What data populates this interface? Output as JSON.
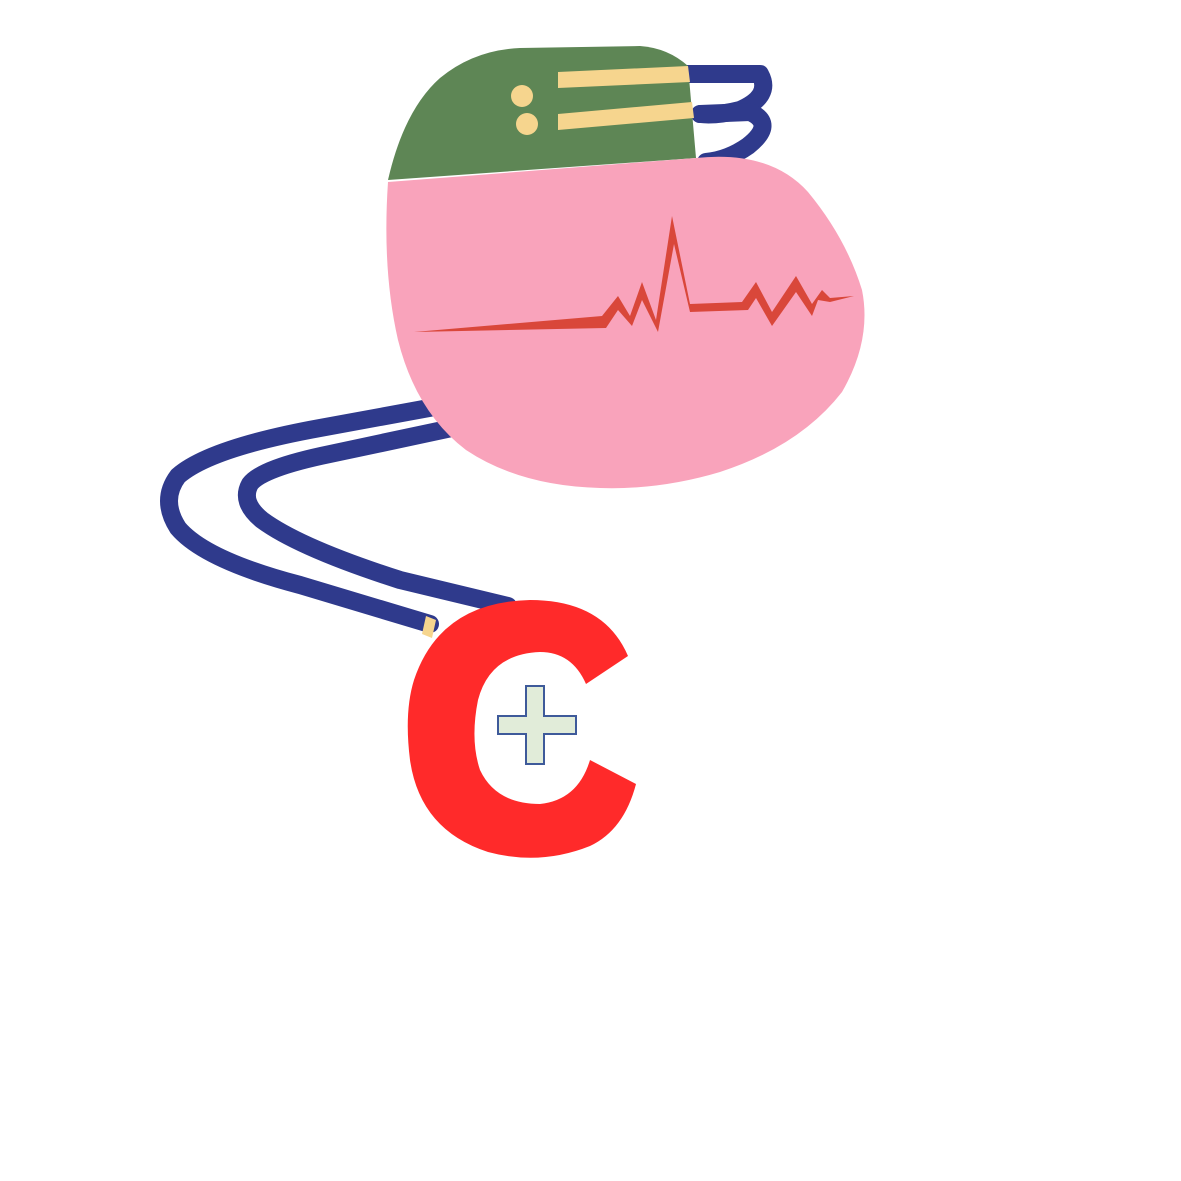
{
  "illustration": {
    "subject": "pacemaker-logo",
    "letter": "C",
    "colors": {
      "background": "#ffffff",
      "lead_wire": "#2f3a8c",
      "device_body": "#f9a3bb",
      "device_header": "#5e8655",
      "header_accent": "#f6d58e",
      "ecg_trace": "#d9473a",
      "letter": "#ff2a2a",
      "cross_fill": "#e1ecd9",
      "cross_outline": "#3e5a9a",
      "wire_band": "#f6d58e"
    },
    "icons": [
      "pacemaker-icon",
      "ecg-trace-icon",
      "medical-cross-icon"
    ]
  }
}
